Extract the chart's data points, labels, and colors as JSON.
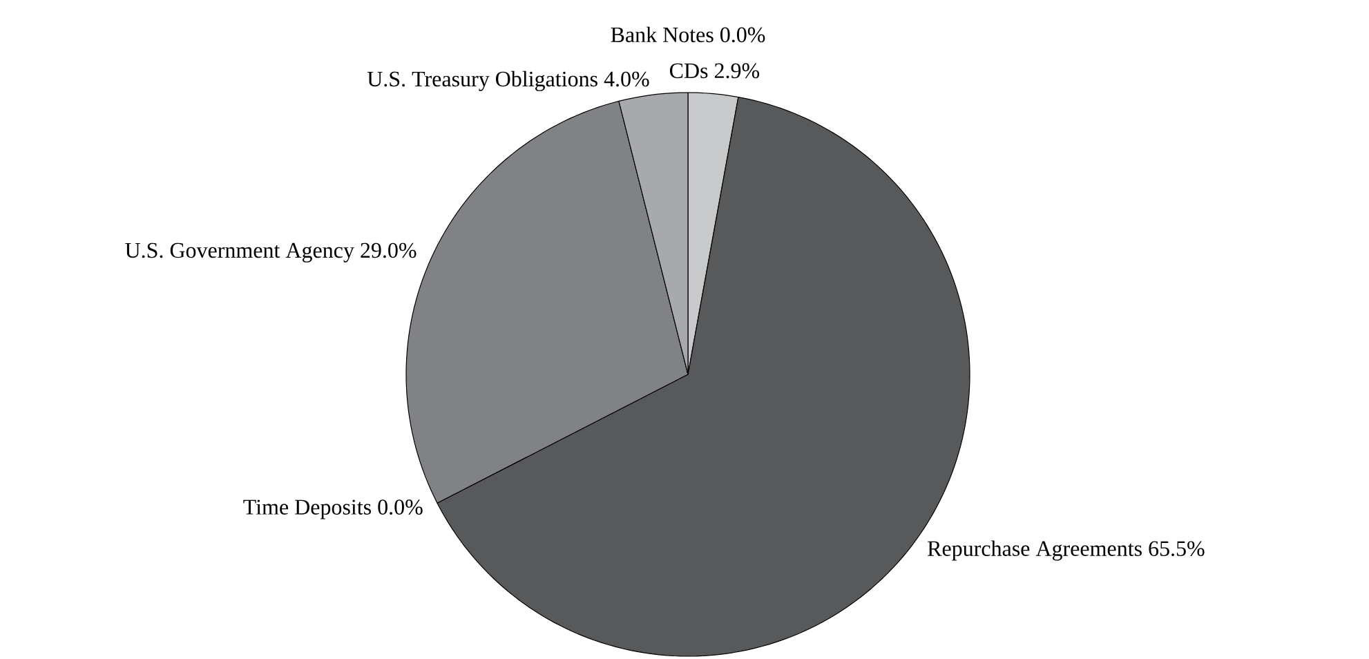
{
  "chart_data": {
    "type": "pie",
    "categories": [
      "Bank Notes",
      "CDs",
      "Repurchase Agreements",
      "Time Deposits",
      "U.S. Government Agency",
      "U.S. Treasury Obligations"
    ],
    "values": [
      0.0,
      2.9,
      65.5,
      0.0,
      29.0,
      4.0
    ],
    "value_labels": [
      "0.0%",
      "2.9%",
      "65.5%",
      "0.0%",
      "29.0%",
      "4.0%"
    ],
    "colors": [
      "#e6e7e8",
      "#c8c9cb",
      "#58595b",
      "#3a3a3c",
      "#808285",
      "#a7a9ac"
    ]
  }
}
